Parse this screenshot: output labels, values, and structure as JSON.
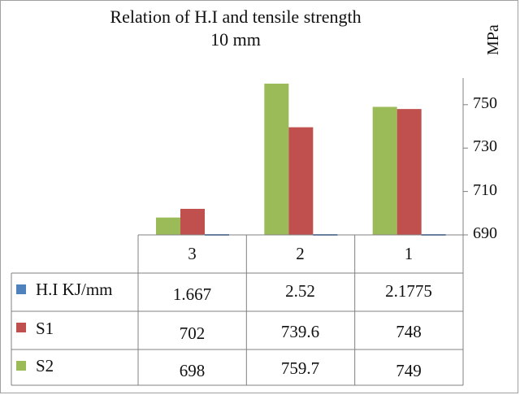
{
  "chart_data": {
    "type": "bar",
    "title": "Relation of H.I and tensile strength",
    "subtitle": "10 mm",
    "ylabel": "MPa",
    "ylim": [
      690,
      760
    ],
    "yticks": [
      "750",
      "730",
      "710",
      "690"
    ],
    "ytick_values": [
      750,
      730,
      710,
      690
    ],
    "categories": [
      "3",
      "2",
      "1"
    ],
    "series": [
      {
        "name": "H.I KJ/mm",
        "values": [
          1.667,
          2.52,
          2.1775
        ],
        "display": [
          "1.667",
          "2.52",
          "2.1775"
        ],
        "color": "#4f81bd"
      },
      {
        "name": "S1",
        "values": [
          702,
          739.6,
          748
        ],
        "display": [
          "702",
          "739.6",
          "748"
        ],
        "color": "#c0504d"
      },
      {
        "name": "S2",
        "values": [
          698,
          759.7,
          749
        ],
        "display": [
          "698",
          "759.7",
          "749"
        ],
        "color": "#9bbb59"
      }
    ],
    "grid": false,
    "legend": "table-left"
  }
}
